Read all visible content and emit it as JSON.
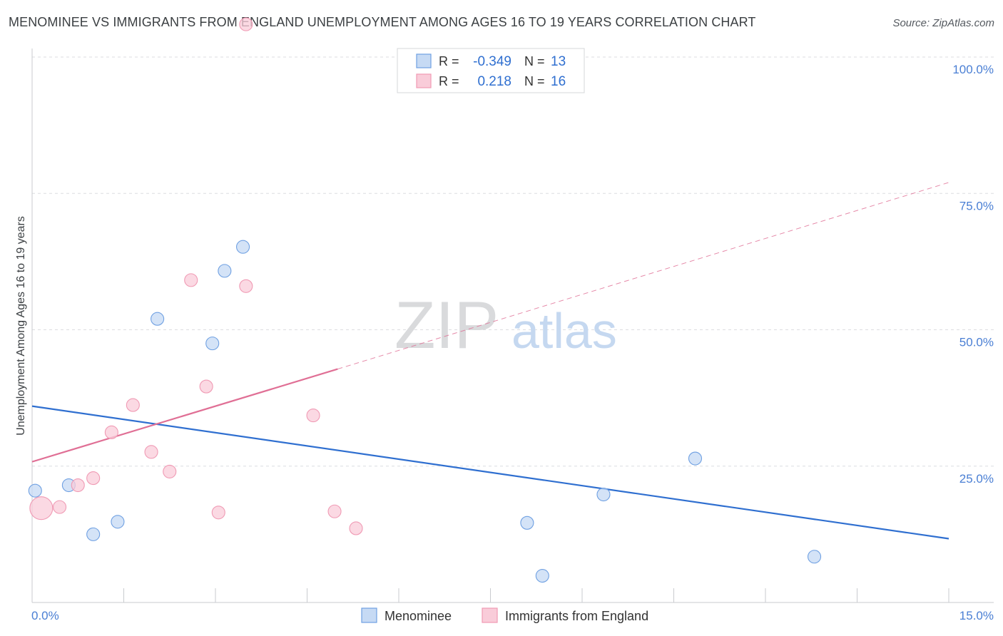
{
  "chart_data": {
    "type": "scatter",
    "title": "MENOMINEE VS IMMIGRANTS FROM ENGLAND UNEMPLOYMENT AMONG AGES 16 TO 19 YEARS CORRELATION CHART",
    "source": "Source: ZipAtlas.com",
    "xlabel": "",
    "ylabel": "Unemployment Among Ages 16 to 19 years",
    "xlim": [
      0,
      15
    ],
    "ylim": [
      0,
      100
    ],
    "x_tick_labels": {
      "min": "0.0%",
      "max": "15.0%"
    },
    "y_ticks": [
      {
        "value": 25,
        "label": "25.0%"
      },
      {
        "value": 50,
        "label": "50.0%"
      },
      {
        "value": 75,
        "label": "75.0%"
      },
      {
        "value": 100,
        "label": "100.0%"
      }
    ],
    "watermark": {
      "zip": "ZIP",
      "atlas": "atlas"
    },
    "legend_position": "top-center",
    "series": [
      {
        "name": "Menominee",
        "color": "#6fa0e2",
        "fill": "#c6daf4",
        "line_color": "#2f6fd0",
        "r_label": "R =",
        "r_value": "-0.349",
        "n_label": "N =",
        "n_value": "13",
        "points": [
          {
            "x": 0.05,
            "y": 20.5,
            "size": 9
          },
          {
            "x": 0.6,
            "y": 21.5,
            "size": 9
          },
          {
            "x": 1.0,
            "y": 12.5,
            "size": 9
          },
          {
            "x": 1.4,
            "y": 14.8,
            "size": 9
          },
          {
            "x": 2.05,
            "y": 52.0,
            "size": 9
          },
          {
            "x": 2.95,
            "y": 47.5,
            "size": 9
          },
          {
            "x": 3.15,
            "y": 60.8,
            "size": 9
          },
          {
            "x": 3.45,
            "y": 65.2,
            "size": 9
          },
          {
            "x": 8.1,
            "y": 14.6,
            "size": 9
          },
          {
            "x": 8.35,
            "y": 4.9,
            "size": 9
          },
          {
            "x": 9.35,
            "y": 19.8,
            "size": 9
          },
          {
            "x": 10.85,
            "y": 26.4,
            "size": 9
          },
          {
            "x": 12.8,
            "y": 8.4,
            "size": 9
          }
        ],
        "trend": {
          "x0": 0,
          "y0": 36.0,
          "x1": 15,
          "y1": 11.7,
          "dashed_to": 15
        }
      },
      {
        "name": "Immigrants from England",
        "color": "#f09ab4",
        "fill": "#f9ccd9",
        "line_color": "#e06f95",
        "r_label": "R =",
        "r_value": "0.218",
        "n_label": "N =",
        "n_value": "16",
        "points": [
          {
            "x": 0.15,
            "y": 17.3,
            "size": 16
          },
          {
            "x": 0.45,
            "y": 17.5,
            "size": 9
          },
          {
            "x": 0.75,
            "y": 21.5,
            "size": 9
          },
          {
            "x": 1.0,
            "y": 22.8,
            "size": 9
          },
          {
            "x": 1.3,
            "y": 31.2,
            "size": 9
          },
          {
            "x": 1.65,
            "y": 36.2,
            "size": 9
          },
          {
            "x": 1.95,
            "y": 27.6,
            "size": 9
          },
          {
            "x": 2.25,
            "y": 24.0,
            "size": 9
          },
          {
            "x": 2.6,
            "y": 59.1,
            "size": 9
          },
          {
            "x": 2.85,
            "y": 39.6,
            "size": 9
          },
          {
            "x": 3.05,
            "y": 16.5,
            "size": 9
          },
          {
            "x": 3.5,
            "y": 58.0,
            "size": 9
          },
          {
            "x": 3.5,
            "y": 106.0,
            "size": 9
          },
          {
            "x": 4.6,
            "y": 34.3,
            "size": 9
          },
          {
            "x": 4.95,
            "y": 16.7,
            "size": 9
          },
          {
            "x": 5.3,
            "y": 13.6,
            "size": 9
          }
        ],
        "trend": {
          "x0": 0,
          "y0": 25.8,
          "x1": 5.0,
          "y1": 42.8,
          "dashed_to": 15,
          "y_dash_end": 77.0
        }
      }
    ]
  }
}
